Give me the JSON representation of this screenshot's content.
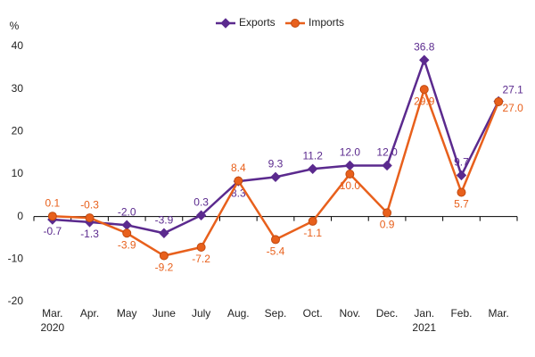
{
  "chart_data": {
    "type": "line",
    "y_axis_label": "%",
    "categories": [
      "Mar.",
      "Apr.",
      "May",
      "June",
      "July",
      "Aug.",
      "Sep.",
      "Oct.",
      "Nov.",
      "Dec.",
      "Jan.",
      "Feb.",
      "Mar."
    ],
    "years": [
      "2020",
      null,
      null,
      null,
      null,
      null,
      null,
      null,
      null,
      null,
      "2021",
      null,
      null
    ],
    "series": [
      {
        "name": "Exports",
        "color": "#5b2a8e",
        "marker": "diamond",
        "values": [
          -0.7,
          -1.3,
          -2.0,
          -3.9,
          0.3,
          8.3,
          9.3,
          11.2,
          12.0,
          12.0,
          36.8,
          9.7,
          27.1
        ],
        "value_labels": [
          "-0.7",
          "-1.3",
          "-2.0",
          "-3.9",
          "0.3",
          "8.3",
          "9.3",
          "11.2",
          "12.0",
          "12.0",
          "36.8",
          "9.7",
          "27.1"
        ]
      },
      {
        "name": "Imports",
        "color": "#e8601c",
        "marker": "circle",
        "values": [
          0.1,
          -0.3,
          -3.9,
          -9.2,
          -7.2,
          8.4,
          -5.4,
          -1.1,
          10.0,
          0.9,
          29.9,
          5.7,
          27.0
        ],
        "value_labels": [
          "0.1",
          "-0.3",
          "-3.9",
          "-9.2",
          "-7.2",
          "8.4",
          "-5.4",
          "-1.1",
          "10.0",
          "0.9",
          "29.9",
          "5.7",
          "27.0"
        ]
      }
    ],
    "ylim": [
      -20,
      40
    ],
    "yticks": [
      -20,
      -10,
      0,
      10,
      20,
      30,
      40
    ],
    "grid": false,
    "legend": "top"
  }
}
